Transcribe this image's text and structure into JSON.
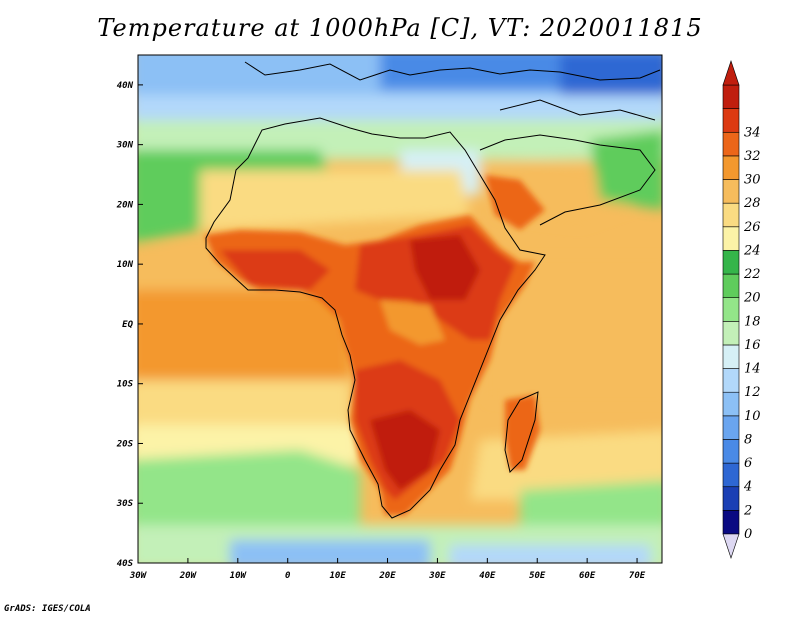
{
  "title": "Temperature at 1000hPa [C], VT: 2020011815",
  "credit": "GrADS: IGES/COLA",
  "map": {
    "lon_range": [
      -30,
      75
    ],
    "lat_range": [
      -40,
      45
    ],
    "lon_ticks": [
      "30W",
      "20W",
      "10W",
      "0",
      "10E",
      "20E",
      "30E",
      "40E",
      "50E",
      "60E",
      "70E"
    ],
    "lat_ticks": [
      "40S",
      "30S",
      "20S",
      "10S",
      "EQ",
      "10N",
      "20N",
      "30N",
      "40N"
    ]
  },
  "colorbar": {
    "labels": [
      "0",
      "2",
      "4",
      "6",
      "8",
      "10",
      "12",
      "14",
      "16",
      "18",
      "20",
      "22",
      "24",
      "26",
      "28",
      "30",
      "32",
      "34"
    ],
    "colors": [
      "#0a0a82",
      "#1b3fb4",
      "#2e67d3",
      "#4a8ae6",
      "#6aa5ef",
      "#8cc0f5",
      "#b2d8fa",
      "#d6f0f6",
      "#c3f0b8",
      "#93e589",
      "#5fcc5c",
      "#35b54a",
      "#fcf3a7",
      "#fadb82",
      "#f6bc5c",
      "#f3982e",
      "#ec6619",
      "#dc3a12",
      "#c01e0e"
    ],
    "under_color": "#ddd8f2"
  }
}
